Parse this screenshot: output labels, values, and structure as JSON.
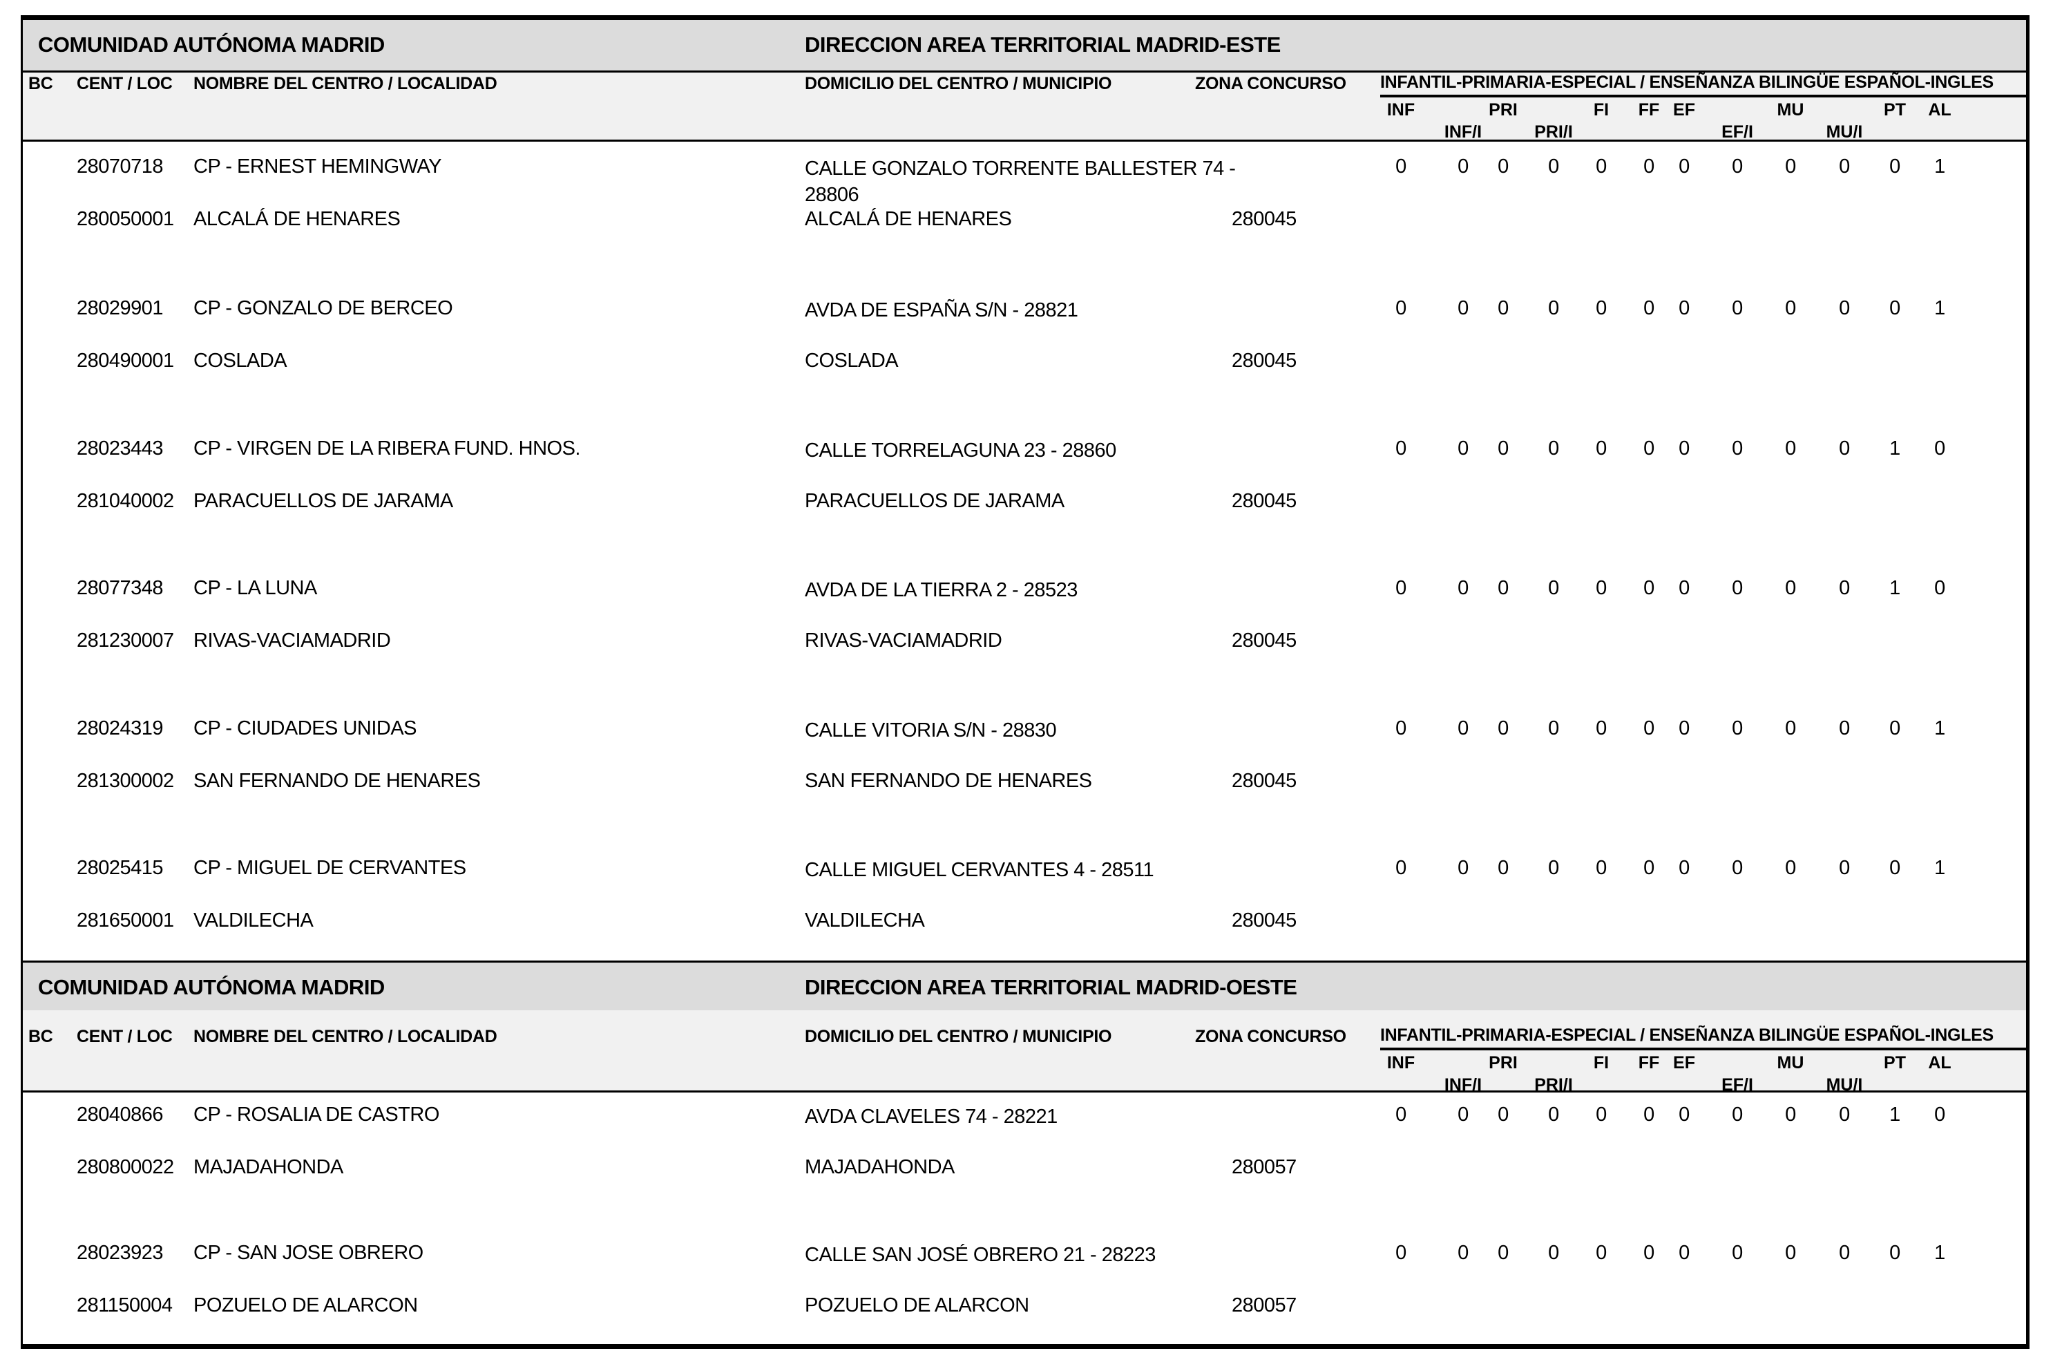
{
  "document": {
    "sections": [
      {
        "region_title": "COMUNIDAD AUTÓNOMA MADRID",
        "direction_title": "DIRECCION AREA TERRITORIAL MADRID-ESTE",
        "columns": {
          "bc": "BC",
          "cent_loc": "CENT / LOC",
          "nombre": "NOMBRE DEL CENTRO / LOCALIDAD",
          "domicilio": "DOMICILIO DEL CENTRO / MUNICIPIO",
          "zona": "ZONA CONCURSO",
          "group_header": "INFANTIL-PRIMARIA-ESPECIAL / ENSEÑANZA BILINGÜE ESPAÑOL-INGLES",
          "sub_row1": [
            "INF",
            "PRI",
            "FI",
            "FF",
            "EF",
            "MU",
            "PT",
            "AL"
          ],
          "sub_row2": [
            "INF/I",
            "PRI/I",
            "EF/I",
            "MU/I"
          ],
          "value_columns": [
            "INF",
            "INF/I",
            "PRI",
            "PRI/I",
            "FI",
            "FF",
            "EF",
            "EF/I",
            "MU",
            "MU/I",
            "PT",
            "AL"
          ]
        },
        "rows": [
          {
            "cent_code": "28070718",
            "centro": "CP - ERNEST HEMINGWAY",
            "domicilio": "CALLE GONZALO TORRENTE BALLESTER 74 - 28806",
            "loc_code": "280050001",
            "localidad": "ALCALÁ DE HENARES",
            "municipio": "ALCALÁ DE HENARES",
            "zona": "280045",
            "values": [
              0,
              0,
              0,
              0,
              0,
              0,
              0,
              0,
              0,
              0,
              0,
              1
            ]
          },
          {
            "cent_code": "28029901",
            "centro": "CP - GONZALO DE BERCEO",
            "domicilio": "AVDA DE ESPAÑA S/N - 28821",
            "loc_code": "280490001",
            "localidad": "COSLADA",
            "municipio": "COSLADA",
            "zona": "280045",
            "values": [
              0,
              0,
              0,
              0,
              0,
              0,
              0,
              0,
              0,
              0,
              0,
              1
            ]
          },
          {
            "cent_code": "28023443",
            "centro": "CP - VIRGEN DE LA RIBERA FUND. HNOS.",
            "domicilio": "CALLE TORRELAGUNA 23 - 28860",
            "loc_code": "281040002",
            "localidad": "PARACUELLOS DE JARAMA",
            "municipio": "PARACUELLOS DE JARAMA",
            "zona": "280045",
            "values": [
              0,
              0,
              0,
              0,
              0,
              0,
              0,
              0,
              0,
              0,
              1,
              0
            ]
          },
          {
            "cent_code": "28077348",
            "centro": "CP - LA LUNA",
            "domicilio": "AVDA DE LA TIERRA 2 - 28523",
            "loc_code": "281230007",
            "localidad": "RIVAS-VACIAMADRID",
            "municipio": "RIVAS-VACIAMADRID",
            "zona": "280045",
            "values": [
              0,
              0,
              0,
              0,
              0,
              0,
              0,
              0,
              0,
              0,
              1,
              0
            ]
          },
          {
            "cent_code": "28024319",
            "centro": "CP - CIUDADES UNIDAS",
            "domicilio": "CALLE VITORIA S/N - 28830",
            "loc_code": "281300002",
            "localidad": "SAN FERNANDO DE HENARES",
            "municipio": "SAN FERNANDO DE HENARES",
            "zona": "280045",
            "values": [
              0,
              0,
              0,
              0,
              0,
              0,
              0,
              0,
              0,
              0,
              0,
              1
            ]
          },
          {
            "cent_code": "28025415",
            "centro": "CP - MIGUEL DE CERVANTES",
            "domicilio": "CALLE MIGUEL CERVANTES 4 - 28511",
            "loc_code": "281650001",
            "localidad": "VALDILECHA",
            "municipio": "VALDILECHA",
            "zona": "280045",
            "values": [
              0,
              0,
              0,
              0,
              0,
              0,
              0,
              0,
              0,
              0,
              0,
              1
            ]
          }
        ]
      },
      {
        "region_title": "COMUNIDAD AUTÓNOMA MADRID",
        "direction_title": "DIRECCION AREA TERRITORIAL MADRID-OESTE",
        "columns": {
          "bc": "BC",
          "cent_loc": "CENT / LOC",
          "nombre": "NOMBRE DEL CENTRO / LOCALIDAD",
          "domicilio": "DOMICILIO DEL CENTRO / MUNICIPIO",
          "zona": "ZONA CONCURSO",
          "group_header": "INFANTIL-PRIMARIA-ESPECIAL / ENSEÑANZA BILINGÜE ESPAÑOL-INGLES",
          "sub_row1": [
            "INF",
            "PRI",
            "FI",
            "FF",
            "EF",
            "MU",
            "PT",
            "AL"
          ],
          "sub_row2": [
            "INF/I",
            "PRI/I",
            "EF/I",
            "MU/I"
          ],
          "value_columns": [
            "INF",
            "INF/I",
            "PRI",
            "PRI/I",
            "FI",
            "FF",
            "EF",
            "EF/I",
            "MU",
            "MU/I",
            "PT",
            "AL"
          ]
        },
        "rows": [
          {
            "cent_code": "28040866",
            "centro": "CP - ROSALIA DE CASTRO",
            "domicilio": "AVDA CLAVELES 74 - 28221",
            "loc_code": "280800022",
            "localidad": "MAJADAHONDA",
            "municipio": "MAJADAHONDA",
            "zona": "280057",
            "values": [
              0,
              0,
              0,
              0,
              0,
              0,
              0,
              0,
              0,
              0,
              1,
              0
            ]
          },
          {
            "cent_code": "28023923",
            "centro": "CP - SAN JOSE OBRERO",
            "domicilio": "CALLE SAN JOSÉ OBRERO 21 - 28223",
            "loc_code": "281150004",
            "localidad": "POZUELO DE ALARCON",
            "municipio": "POZUELO DE ALARCON",
            "zona": "280057",
            "values": [
              0,
              0,
              0,
              0,
              0,
              0,
              0,
              0,
              0,
              0,
              0,
              1
            ]
          }
        ]
      }
    ],
    "colors": {
      "band_bg": "#dcdcdc",
      "header_bg": "#f1f1f1",
      "border": "#000000",
      "text": "#000000"
    }
  }
}
